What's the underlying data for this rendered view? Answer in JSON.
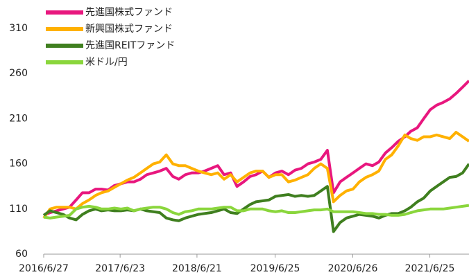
{
  "chart_data": {
    "type": "line",
    "x": [
      "2016/6/27",
      "2016/7/27",
      "2016/8/27",
      "2016/9/27",
      "2016/10/27",
      "2016/11/27",
      "2016/12/27",
      "2017/1/27",
      "2017/2/27",
      "2017/3/27",
      "2017/4/27",
      "2017/5/27",
      "2017/6/27",
      "2017/7/27",
      "2017/8/27",
      "2017/9/27",
      "2017/10/27",
      "2017/11/27",
      "2017/12/27",
      "2018/1/27",
      "2018/2/27",
      "2018/3/27",
      "2018/4/27",
      "2018/5/27",
      "2018/6/27",
      "2018/7/27",
      "2018/8/27",
      "2018/9/27",
      "2018/10/27",
      "2018/11/27",
      "2018/12/27",
      "2019/1/27",
      "2019/2/27",
      "2019/3/27",
      "2019/4/27",
      "2019/5/27",
      "2019/6/27",
      "2019/7/27",
      "2019/8/27",
      "2019/9/27",
      "2019/10/27",
      "2019/11/27",
      "2019/12/27",
      "2020/1/27",
      "2020/2/27",
      "2020/3/27",
      "2020/4/27",
      "2020/5/27",
      "2020/6/27",
      "2020/7/27",
      "2020/8/27",
      "2020/9/27",
      "2020/10/27",
      "2020/11/27",
      "2020/12/27",
      "2021/1/27",
      "2021/2/27",
      "2021/3/27",
      "2021/4/27",
      "2021/5/27",
      "2021/6/27",
      "2021/7/27",
      "2021/8/27",
      "2021/9/27",
      "2021/10/27",
      "2021/11/27",
      "2021/12/27"
    ],
    "series": [
      {
        "name": "先進国株式ファンド",
        "color": "#e8177e",
        "values": [
          103,
          106,
          108,
          110,
          112,
          120,
          128,
          128,
          132,
          132,
          131,
          136,
          138,
          140,
          140,
          143,
          148,
          150,
          152,
          155,
          146,
          143,
          148,
          150,
          150,
          152,
          155,
          158,
          148,
          150,
          135,
          140,
          146,
          148,
          152,
          145,
          150,
          152,
          148,
          153,
          155,
          160,
          162,
          165,
          175,
          128,
          140,
          145,
          150,
          155,
          160,
          158,
          162,
          172,
          178,
          185,
          190,
          196,
          200,
          210,
          220,
          225,
          228,
          232,
          238,
          245,
          252
        ]
      },
      {
        "name": "新興国株式ファンド",
        "color": "#ffb100",
        "values": [
          100,
          110,
          112,
          112,
          112,
          110,
          116,
          120,
          125,
          128,
          130,
          134,
          138,
          142,
          145,
          150,
          155,
          160,
          162,
          170,
          160,
          158,
          158,
          155,
          152,
          150,
          148,
          150,
          143,
          148,
          140,
          145,
          150,
          152,
          152,
          145,
          148,
          148,
          140,
          142,
          145,
          148,
          155,
          160,
          155,
          118,
          125,
          130,
          132,
          140,
          145,
          148,
          152,
          165,
          170,
          180,
          192,
          188,
          186,
          190,
          190,
          192,
          190,
          188,
          195,
          190,
          185
        ]
      },
      {
        "name": "先進国REITファンド",
        "color": "#3f7f1f",
        "values": [
          103,
          108,
          106,
          104,
          100,
          98,
          104,
          108,
          110,
          108,
          109,
          108,
          108,
          109,
          108,
          110,
          108,
          107,
          106,
          100,
          98,
          97,
          100,
          102,
          104,
          105,
          106,
          108,
          110,
          106,
          105,
          110,
          115,
          118,
          119,
          120,
          124,
          125,
          126,
          124,
          125,
          124,
          125,
          130,
          135,
          85,
          95,
          100,
          102,
          104,
          103,
          102,
          100,
          103,
          105,
          105,
          108,
          112,
          118,
          122,
          130,
          135,
          140,
          145,
          146,
          150,
          160
        ]
      },
      {
        "name": "米ドル/円",
        "color": "#8ad63c",
        "values": [
          101,
          100,
          101,
          102,
          103,
          110,
          112,
          113,
          112,
          110,
          110,
          111,
          110,
          111,
          108,
          110,
          111,
          112,
          112,
          110,
          106,
          104,
          107,
          108,
          110,
          110,
          110,
          111,
          112,
          112,
          108,
          108,
          110,
          110,
          110,
          108,
          107,
          108,
          106,
          106,
          107,
          108,
          109,
          109,
          110,
          107,
          107,
          107,
          107,
          106,
          105,
          105,
          104,
          104,
          103,
          103,
          104,
          106,
          108,
          109,
          110,
          110,
          110,
          111,
          112,
          113,
          114
        ]
      }
    ],
    "xlim": [
      "2016/6/27",
      "2021/12/27"
    ],
    "xticks": [
      "2016/6/27",
      "2017/6/23",
      "2018/6/21",
      "2019/6/25",
      "2020/6/26",
      "2021/6/25"
    ],
    "ylim": [
      60,
      310
    ],
    "yticks": [
      60,
      110,
      160,
      210,
      260,
      310
    ],
    "grid": false,
    "legend": "top-left"
  }
}
